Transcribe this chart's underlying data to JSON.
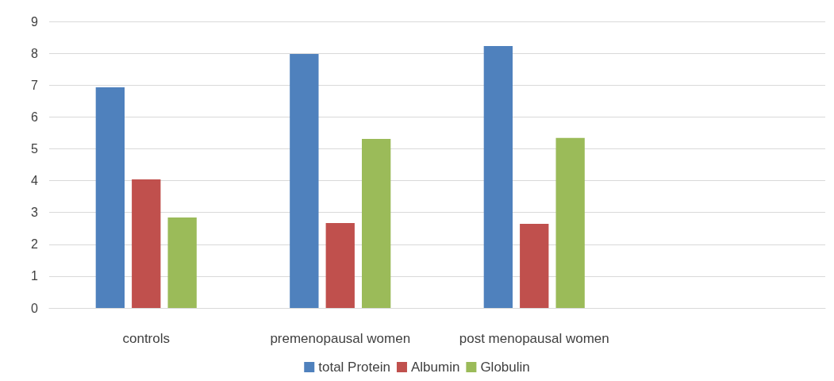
{
  "chart_data": {
    "type": "bar",
    "categories": [
      "controls",
      "premenopausal women",
      "post menopausal women",
      null
    ],
    "series": [
      {
        "name": "total Protein",
        "color": "#4f81bd",
        "values": [
          6.93,
          7.98,
          8.23,
          null
        ]
      },
      {
        "name": "Albumin",
        "color": "#c0504d",
        "values": [
          4.04,
          2.67,
          2.64,
          null
        ]
      },
      {
        "name": "Globulin",
        "color": "#9bbb59",
        "values": [
          2.84,
          5.31,
          5.34,
          null
        ]
      }
    ],
    "ylim": [
      0,
      9
    ],
    "yticks": [
      0,
      1,
      2,
      3,
      4,
      5,
      6,
      7,
      8,
      9
    ],
    "grid": "y",
    "legend": "bottom"
  }
}
